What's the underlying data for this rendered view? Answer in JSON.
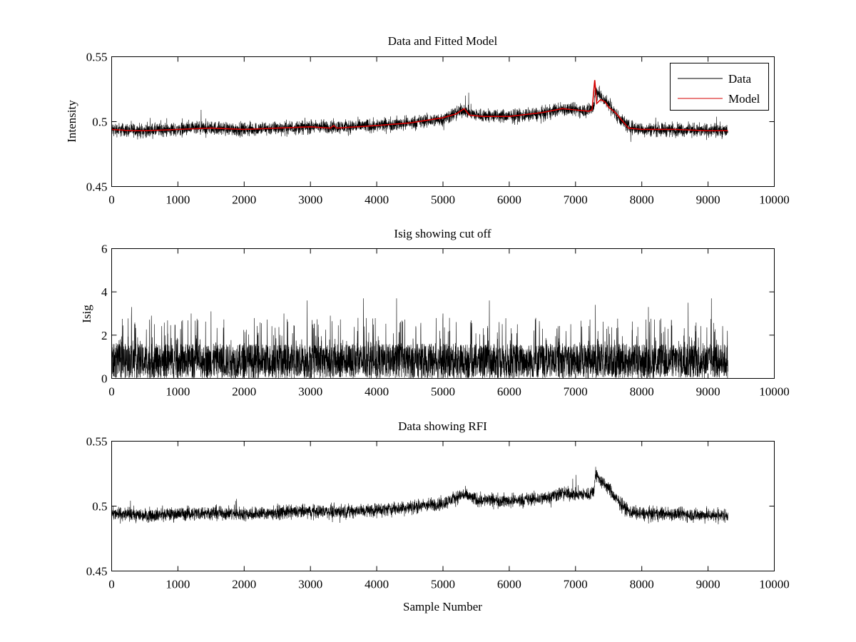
{
  "colors": {
    "data": "#000000",
    "model": "#d40000",
    "background": "#ffffff"
  },
  "chart_data": [
    {
      "type": "line",
      "title": "Data and Fitted Model",
      "xlabel": "",
      "ylabel": "Intensity",
      "xlim": [
        0,
        10000
      ],
      "ylim": [
        0.45,
        0.55
      ],
      "xticks": [
        0,
        1000,
        2000,
        3000,
        4000,
        5000,
        6000,
        7000,
        8000,
        9000,
        10000
      ],
      "yticks": [
        0.45,
        0.5,
        0.55
      ],
      "legend": {
        "position": "top-right",
        "entries": [
          "Data",
          "Model"
        ]
      },
      "series": [
        {
          "name": "Data",
          "color": "#000000",
          "n_samples": 9300,
          "noise_amplitude": 0.004,
          "trend_x": [
            0,
            500,
            1000,
            1500,
            2000,
            2500,
            3000,
            3500,
            4000,
            4500,
            5000,
            5300,
            5500,
            6000,
            6500,
            6800,
            7000,
            7200,
            7280,
            7300,
            7400,
            7500,
            7600,
            7800,
            8000,
            8500,
            9000,
            9300
          ],
          "trend_y": [
            0.494,
            0.493,
            0.494,
            0.495,
            0.494,
            0.495,
            0.496,
            0.496,
            0.497,
            0.499,
            0.502,
            0.509,
            0.505,
            0.504,
            0.506,
            0.51,
            0.509,
            0.509,
            0.512,
            0.525,
            0.518,
            0.514,
            0.506,
            0.496,
            0.494,
            0.494,
            0.493,
            0.493
          ]
        },
        {
          "name": "Model",
          "color": "#d40000",
          "x": [
            0,
            300,
            500,
            1000,
            1500,
            2000,
            2500,
            3000,
            3300,
            3350,
            3400,
            4000,
            4500,
            5000,
            5200,
            5320,
            5400,
            5600,
            6000,
            6500,
            6800,
            7000,
            7200,
            7250,
            7290,
            7320,
            7380,
            7450,
            7500,
            7600,
            7700,
            7800,
            8000,
            8500,
            9000,
            9300
          ],
          "y": [
            0.494,
            0.493,
            0.493,
            0.494,
            0.495,
            0.494,
            0.495,
            0.496,
            0.495,
            0.497,
            0.495,
            0.497,
            0.499,
            0.503,
            0.506,
            0.51,
            0.505,
            0.504,
            0.504,
            0.507,
            0.51,
            0.509,
            0.508,
            0.509,
            0.532,
            0.514,
            0.517,
            0.515,
            0.511,
            0.507,
            0.501,
            0.495,
            0.494,
            0.494,
            0.493,
            0.493
          ]
        }
      ]
    },
    {
      "type": "line",
      "title": "Isig showing cut off",
      "xlabel": "",
      "ylabel": "Isig",
      "xlim": [
        0,
        10000
      ],
      "ylim": [
        0,
        6
      ],
      "xticks": [
        0,
        1000,
        2000,
        3000,
        4000,
        5000,
        6000,
        7000,
        8000,
        9000,
        10000
      ],
      "yticks": [
        0,
        2,
        4,
        6
      ],
      "series": [
        {
          "name": "Isig",
          "color": "#000000",
          "n_samples": 9300,
          "typical_max": 1.6,
          "peak_max": 3.7,
          "peaks_x": [
            300,
            600,
            1200,
            1500,
            2600,
            2950,
            3300,
            3800,
            4300,
            5000,
            5700,
            6400,
            7300,
            8100,
            8700,
            9050
          ],
          "peaks_y": [
            3.3,
            2.9,
            3.0,
            3.1,
            3.0,
            3.6,
            2.9,
            3.7,
            3.7,
            3.0,
            3.6,
            2.8,
            3.4,
            3.3,
            3.5,
            3.7
          ]
        }
      ]
    },
    {
      "type": "line",
      "title": "Data showing RFI",
      "xlabel": "Sample Number",
      "ylabel": "",
      "xlim": [
        0,
        10000
      ],
      "ylim": [
        0.45,
        0.55
      ],
      "xticks": [
        0,
        1000,
        2000,
        3000,
        4000,
        5000,
        6000,
        7000,
        8000,
        9000,
        10000
      ],
      "yticks": [
        0.45,
        0.5,
        0.55
      ],
      "series": [
        {
          "name": "Data",
          "color": "#000000",
          "n_samples": 9300,
          "noise_amplitude": 0.004,
          "trend_x": [
            0,
            500,
            1000,
            1500,
            2000,
            2500,
            3000,
            3500,
            4000,
            4500,
            5000,
            5300,
            5500,
            6000,
            6500,
            6800,
            7000,
            7200,
            7280,
            7300,
            7400,
            7500,
            7600,
            7800,
            8000,
            8500,
            9000,
            9300
          ],
          "trend_y": [
            0.494,
            0.493,
            0.494,
            0.495,
            0.494,
            0.495,
            0.496,
            0.496,
            0.497,
            0.499,
            0.502,
            0.509,
            0.505,
            0.504,
            0.506,
            0.51,
            0.509,
            0.509,
            0.512,
            0.525,
            0.518,
            0.514,
            0.506,
            0.496,
            0.494,
            0.494,
            0.493,
            0.493
          ]
        }
      ]
    }
  ]
}
